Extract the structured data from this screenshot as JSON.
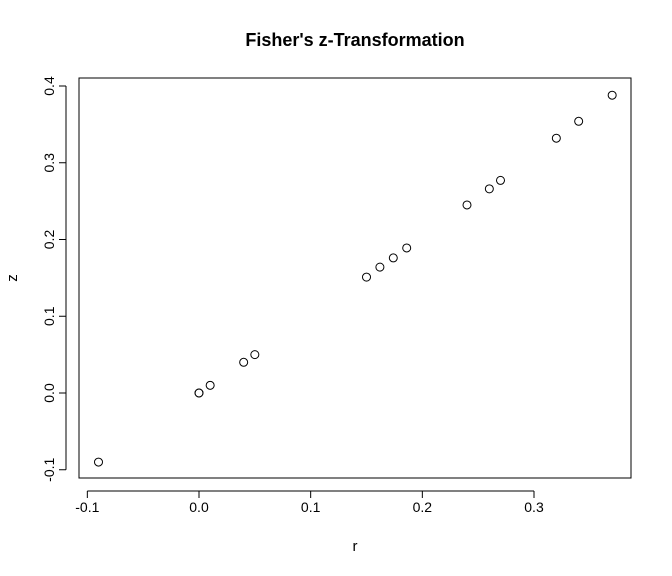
{
  "chart_data": {
    "type": "scatter",
    "title": "Fisher's z-Transformation",
    "xlabel": "r",
    "ylabel": "z",
    "xlim": [
      -0.1,
      0.38
    ],
    "ylim": [
      -0.1,
      0.4
    ],
    "xticks": [
      -0.1,
      0.0,
      0.1,
      0.2,
      0.3
    ],
    "xtick_labels": [
      "-0.1",
      "0.0",
      "0.1",
      "0.2",
      "0.3"
    ],
    "yticks": [
      -0.1,
      0.0,
      0.1,
      0.2,
      0.3,
      0.4
    ],
    "ytick_labels": [
      "-0.1",
      "0.0",
      "0.1",
      "0.2",
      "0.3",
      "0.4"
    ],
    "grid": false,
    "legend": "none",
    "marker": "open-circle",
    "points": [
      {
        "x": -0.09,
        "y": -0.09
      },
      {
        "x": 0.0,
        "y": 0.0
      },
      {
        "x": 0.0,
        "y": 0.0
      },
      {
        "x": 0.01,
        "y": 0.01
      },
      {
        "x": 0.04,
        "y": 0.04
      },
      {
        "x": 0.05,
        "y": 0.05
      },
      {
        "x": 0.15,
        "y": 0.151
      },
      {
        "x": 0.162,
        "y": 0.164
      },
      {
        "x": 0.174,
        "y": 0.176
      },
      {
        "x": 0.186,
        "y": 0.189
      },
      {
        "x": 0.24,
        "y": 0.245
      },
      {
        "x": 0.26,
        "y": 0.266
      },
      {
        "x": 0.27,
        "y": 0.277
      },
      {
        "x": 0.32,
        "y": 0.332
      },
      {
        "x": 0.34,
        "y": 0.354
      },
      {
        "x": 0.37,
        "y": 0.388
      }
    ]
  }
}
